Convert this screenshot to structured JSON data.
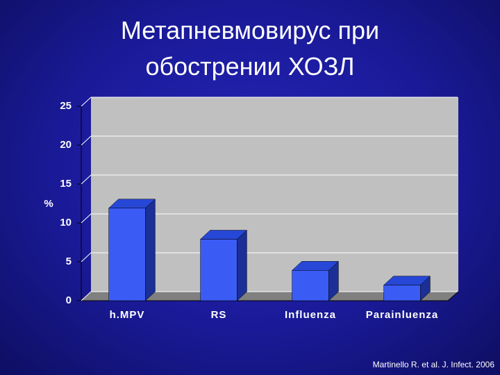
{
  "chart_data": {
    "type": "bar3d",
    "title": "Метапневмовирус при обострении ХОЗЛ",
    "y_label": "%",
    "categories": [
      "h.MPV",
      "RS",
      "Influenza",
      "Parainluenza"
    ],
    "values": [
      11.9,
      7.9,
      3.9,
      2.0
    ],
    "color": "#3a5cf5",
    "ylim": [
      0,
      25
    ],
    "yticks": [
      0,
      5,
      10,
      15,
      20,
      25
    ],
    "grid": true,
    "source": "Martinello R. et al. J. Infect. 2006"
  }
}
